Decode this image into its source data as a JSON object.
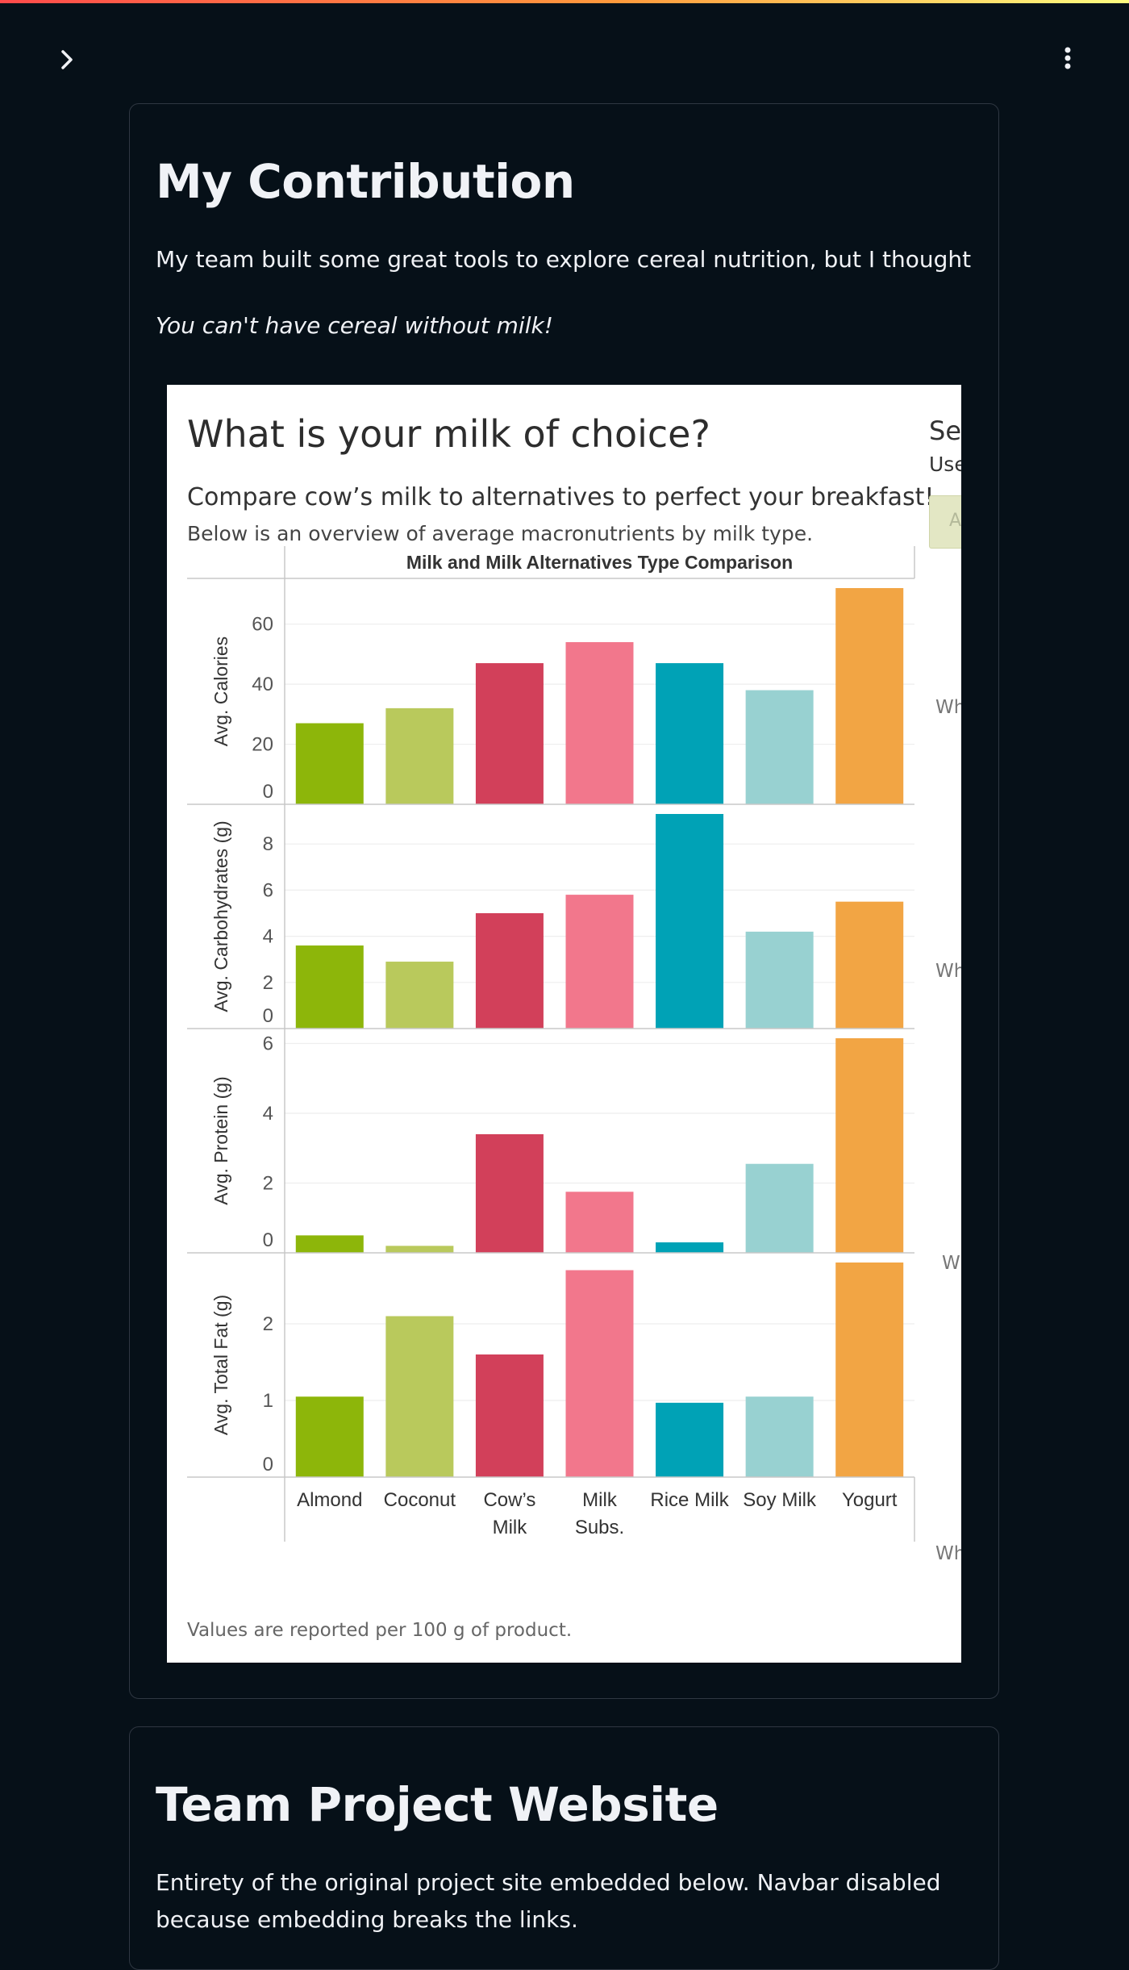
{
  "header": {
    "expand_icon": "chevron-right-icon",
    "menu_icon": "vertical-dots-icon"
  },
  "contribution": {
    "title": "My Contribution",
    "intro": "My team built some great tools to explore cereal nutrition, but I thought",
    "tagline": "You can't have cereal without milk!"
  },
  "viz": {
    "title": "What is your milk of choice?",
    "subtitle": "Compare cow’s milk to alternatives to perfect your breakfast!",
    "subtitle2": "Below is an overview of average macronutrients by milk type.",
    "side_title": "Sel",
    "side_sub": "Use",
    "side_button": "A",
    "side_labels": [
      "Wh",
      "Wh",
      "W",
      "Wh"
    ],
    "footnote": "Values are reported per 100 g of product."
  },
  "team": {
    "title": "Team Project Website",
    "text": "Entirety of the original project site embedded below. Navbar disabled because embedding breaks the links."
  },
  "chart_data": {
    "type": "bar",
    "title": "Milk and Milk Alternatives Type Comparison",
    "categories": [
      "Almond",
      "Coconut",
      "Cow’s Milk",
      "Milk Subs.",
      "Rice Milk",
      "Soy Milk",
      "Yogurt"
    ],
    "category_lines": [
      [
        "Almond"
      ],
      [
        "Coconut"
      ],
      [
        "Cow’s",
        "Milk"
      ],
      [
        "Milk",
        "Subs."
      ],
      [
        "Rice Milk"
      ],
      [
        "Soy Milk"
      ],
      [
        "Yogurt"
      ]
    ],
    "colors": [
      "#8db60a",
      "#b9c95c",
      "#d2405a",
      "#f2778c",
      "#00a2b6",
      "#98d1d1",
      "#f2a544"
    ],
    "series": [
      {
        "name": "Avg. Calories",
        "values": [
          27,
          32,
          47,
          54,
          47,
          38,
          72
        ],
        "ylim": [
          0,
          72
        ],
        "ticks": [
          0,
          20,
          40,
          60
        ]
      },
      {
        "name": "Avg. Carbohydrates (g)",
        "values": [
          3.6,
          2.9,
          5.0,
          5.8,
          9.3,
          4.2,
          5.5
        ],
        "ylim": [
          0,
          9.3
        ],
        "ticks": [
          0,
          2,
          4,
          6,
          8
        ]
      },
      {
        "name": "Avg. Protein (g)",
        "values": [
          0.5,
          0.2,
          3.4,
          1.75,
          0.3,
          2.55,
          6.15
        ],
        "ylim": [
          0,
          6.15
        ],
        "ticks": [
          0,
          2,
          4,
          6
        ]
      },
      {
        "name": "Avg. Total Fat (g)",
        "values": [
          1.05,
          2.1,
          1.6,
          2.7,
          0.97,
          1.05,
          2.8
        ],
        "ylim": [
          0,
          2.8
        ],
        "ticks": [
          0,
          1,
          2
        ]
      }
    ],
    "legend": "none"
  }
}
